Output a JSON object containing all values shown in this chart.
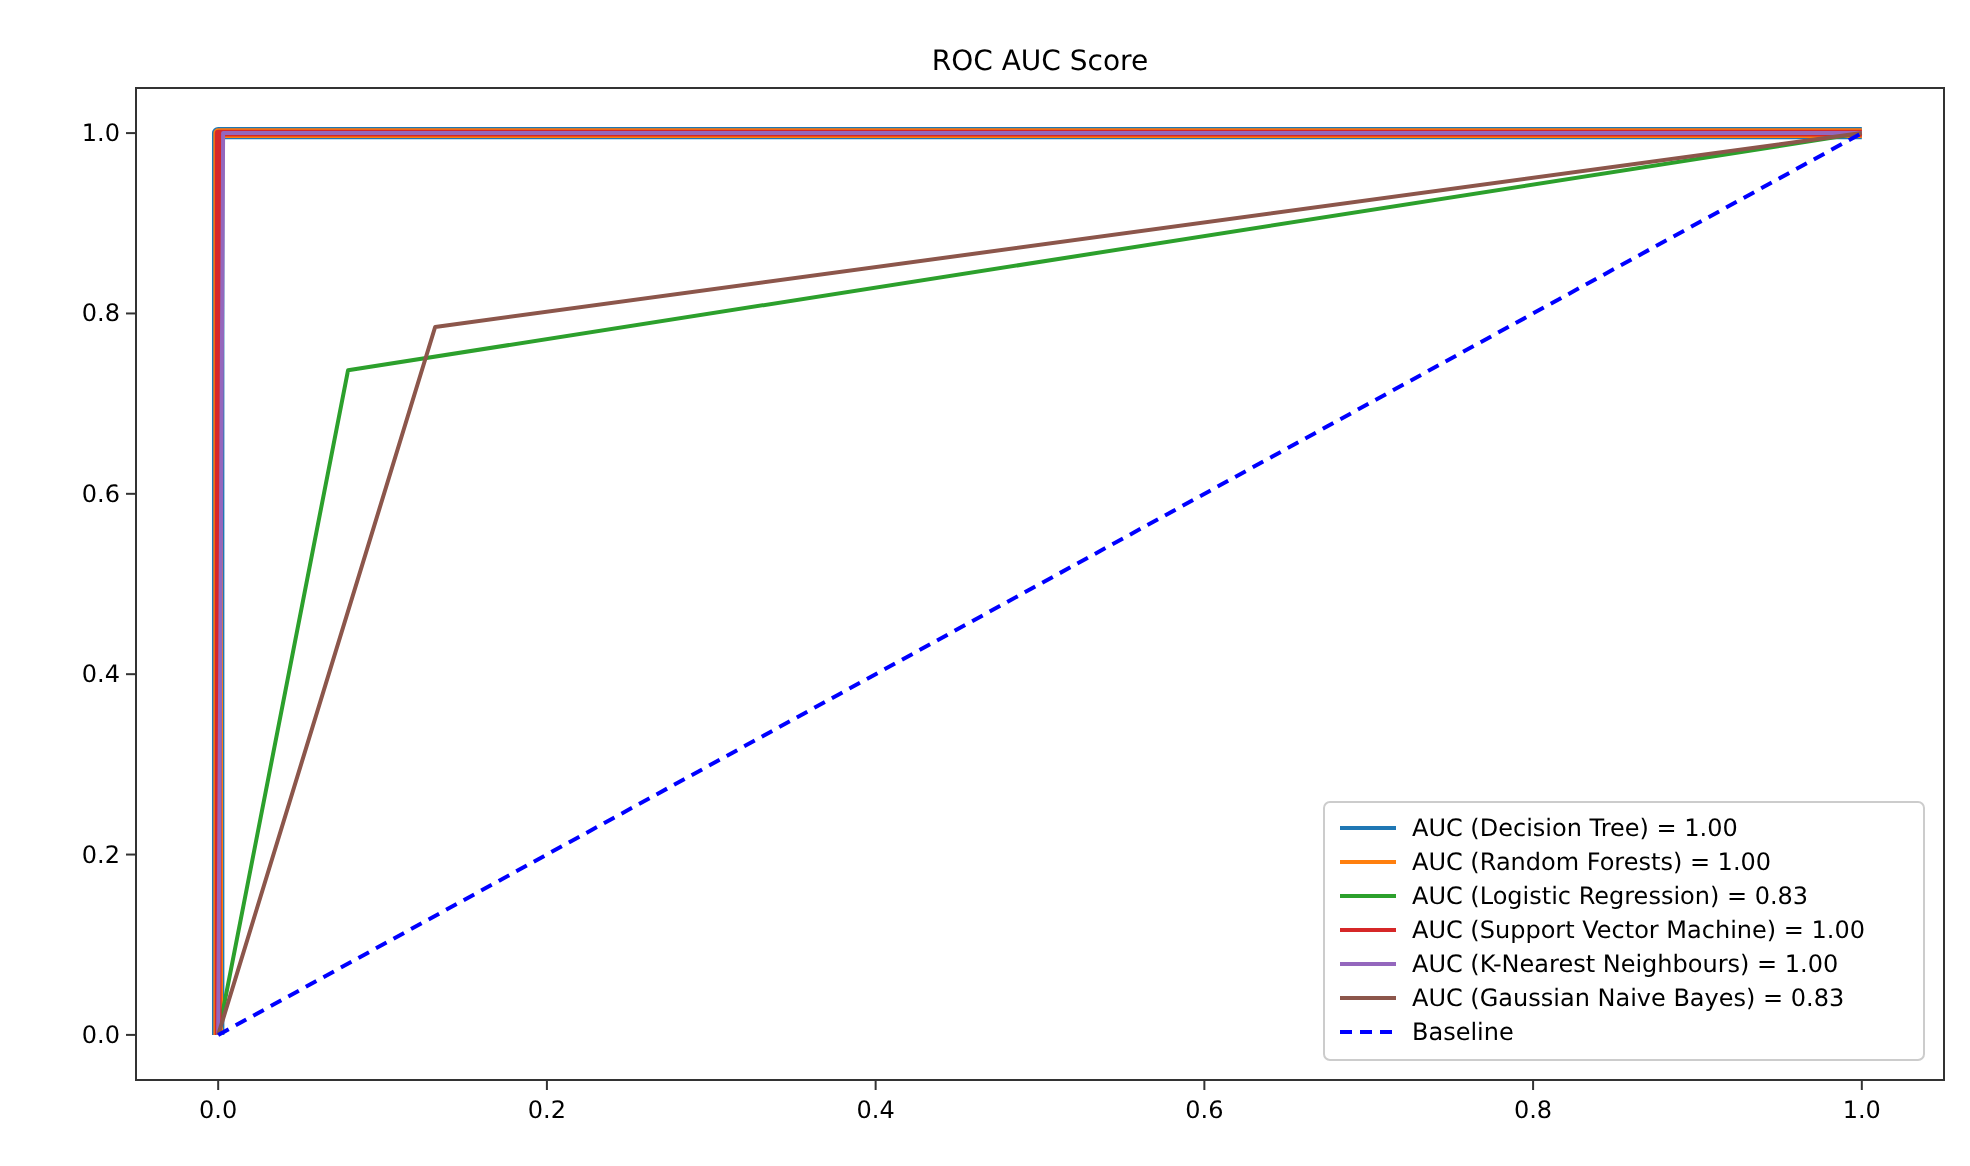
{
  "chart_data": {
    "type": "line",
    "title": "ROC AUC Score",
    "xlim": [
      -0.05,
      1.05
    ],
    "ylim": [
      -0.05,
      1.05
    ],
    "xticks": [
      {
        "value": 0,
        "label": "0.0"
      },
      0.2,
      0.4,
      0.6,
      0.8,
      {
        "value": 1,
        "label": "1.0"
      }
    ],
    "yticks": [
      {
        "value": 0,
        "label": "0.0"
      },
      0.2,
      0.4,
      0.6,
      0.8,
      {
        "value": 1,
        "label": "1.0"
      }
    ],
    "grid": false,
    "legend": "bottom right",
    "marker": "none",
    "series": [
      {
        "name": "AUC (Decision Tree) = 1.00",
        "color": "#1f77b4",
        "x": [
          0,
          0,
          1
        ],
        "values": [
          0,
          1,
          1
        ],
        "line_style": "solid"
      },
      {
        "name": "AUC (Random Forests) = 1.00",
        "color": "#ff7f0e",
        "x": [
          0,
          0,
          1
        ],
        "values": [
          0,
          1,
          1
        ],
        "line_style": "solid"
      },
      {
        "name": "AUC (Logistic Regression) = 0.83",
        "color": "#2ca02c",
        "x": [
          0,
          0.079,
          1
        ],
        "values": [
          0,
          0.737,
          1
        ],
        "line_style": "solid"
      },
      {
        "name": "AUC (Support Vector Machine) = 1.00",
        "color": "#d62728",
        "x": [
          0,
          0,
          1
        ],
        "values": [
          0,
          1,
          1
        ],
        "line_style": "solid"
      },
      {
        "name": "AUC (K-Nearest Neighbours) = 1.00",
        "color": "#9467bd",
        "x": [
          0,
          0.003,
          1
        ],
        "values": [
          0,
          1,
          1
        ],
        "line_style": "solid"
      },
      {
        "name": "AUC (Gaussian Naive Bayes) = 0.83",
        "color": "#8c564b",
        "x": [
          0,
          0.132,
          1
        ],
        "values": [
          0,
          0.785,
          1
        ],
        "line_style": "solid"
      },
      {
        "name": "Baseline",
        "color": "#0000ff",
        "x": [
          0,
          1
        ],
        "values": [
          0,
          1
        ],
        "line_style": "dashed"
      }
    ]
  }
}
